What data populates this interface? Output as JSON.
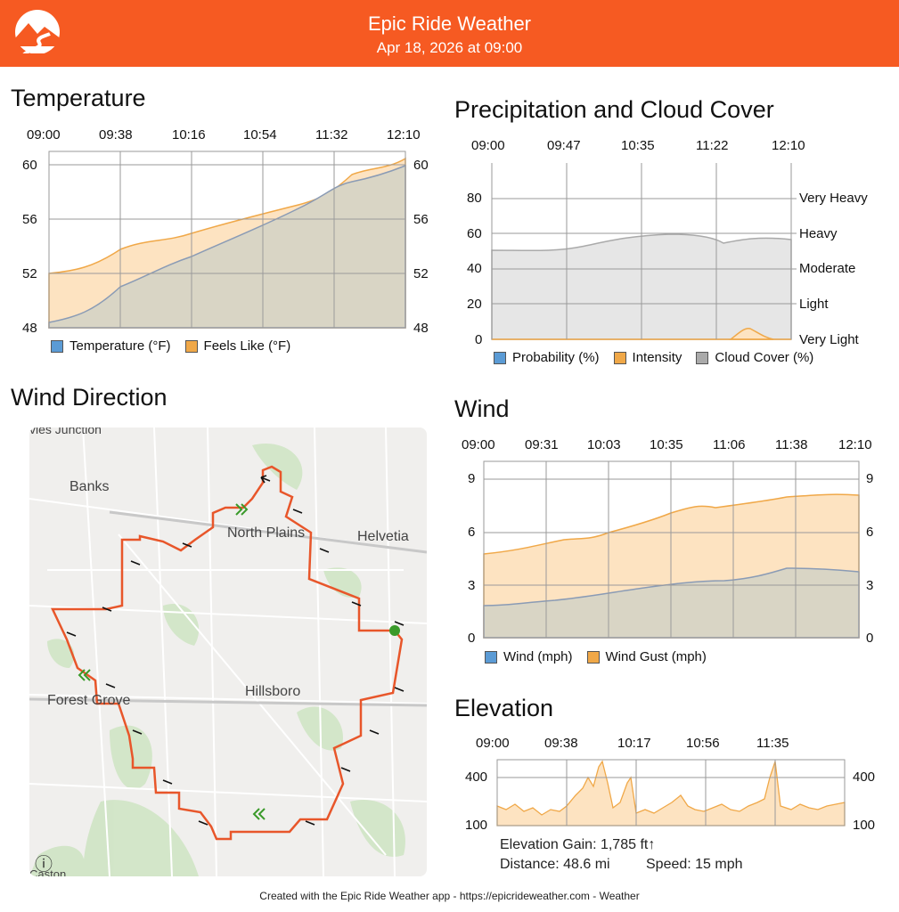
{
  "header": {
    "title": "Epic Ride Weather",
    "subtitle": "Apr 18, 2026 at 09:00",
    "bg_color": "#f65a22"
  },
  "temperature": {
    "title": "Temperature",
    "times": [
      "09:00",
      "09:38",
      "10:16",
      "10:54",
      "11:32",
      "12:10"
    ],
    "y_ticks": [
      "60",
      "56",
      "52",
      "48"
    ],
    "legend": [
      "Temperature (°F)",
      "Feels Like (°F)"
    ]
  },
  "precip": {
    "title": "Precipitation and Cloud Cover",
    "times": [
      "09:00",
      "09:47",
      "10:35",
      "11:22",
      "12:10"
    ],
    "y_ticks": [
      "80",
      "60",
      "40",
      "20",
      "0"
    ],
    "intensity_labels": [
      "Very Heavy",
      "Heavy",
      "Moderate",
      "Light",
      "Very Light"
    ],
    "legend": [
      "Probability (%)",
      "Intensity",
      "Cloud Cover (%)"
    ]
  },
  "wind_direction": {
    "title": "Wind Direction"
  },
  "map": {
    "labels": [
      "vies Junction",
      "Banks",
      "North Plains",
      "Helvetia",
      "Forest Grove",
      "Hillsboro",
      "Caston"
    ],
    "info_glyph": "ⓘ"
  },
  "wind": {
    "title": "Wind",
    "times": [
      "09:00",
      "09:31",
      "10:03",
      "10:35",
      "11:06",
      "11:38",
      "12:10"
    ],
    "y_ticks": [
      "9",
      "6",
      "3",
      "0"
    ],
    "legend": [
      "Wind (mph)",
      "Wind Gust (mph)"
    ]
  },
  "elevation": {
    "title": "Elevation",
    "times": [
      "09:00",
      "09:38",
      "10:17",
      "10:56",
      "11:35"
    ],
    "y_ticks": [
      "400",
      "100"
    ],
    "gain": "Elevation Gain: 1,785 ft↑",
    "distance": "Distance: 48.6 mi",
    "speed": "Speed: 15 mph"
  },
  "footer": {
    "text": "Created with the Epic Ride Weather app - https://epicrideweather.com -  Weather"
  },
  "chart_data": [
    {
      "type": "area",
      "title": "Temperature",
      "categories": [
        "09:00",
        "09:38",
        "10:16",
        "10:54",
        "11:32",
        "12:10"
      ],
      "ylim": [
        48,
        60
      ],
      "series": [
        {
          "name": "Temperature (°F)",
          "values": [
            48.4,
            51.0,
            53.2,
            55.5,
            57.6,
            59.8
          ],
          "color": "#8a9bb5"
        },
        {
          "name": "Feels Like (°F)",
          "values": [
            52.0,
            54.1,
            55.0,
            56.5,
            58.2,
            60.4
          ],
          "color": "#f0a848"
        }
      ]
    },
    {
      "type": "area",
      "title": "Precipitation and Cloud Cover",
      "categories": [
        "09:00",
        "09:47",
        "10:35",
        "11:22",
        "12:10"
      ],
      "ylim": [
        0,
        80
      ],
      "series": [
        {
          "name": "Probability (%)",
          "values": [
            0,
            0,
            0,
            0,
            0
          ],
          "color": "#5b9bd5"
        },
        {
          "name": "Intensity",
          "values": [
            0,
            0,
            0,
            0,
            0
          ],
          "color": "#f0a848"
        },
        {
          "name": "Cloud Cover (%)",
          "values": [
            50,
            52,
            60,
            56,
            57
          ],
          "color": "#aaaaaa"
        }
      ]
    },
    {
      "type": "area",
      "title": "Wind",
      "categories": [
        "09:00",
        "09:31",
        "10:03",
        "10:35",
        "11:06",
        "11:38",
        "12:10"
      ],
      "ylim": [
        0,
        9
      ],
      "series": [
        {
          "name": "Wind (mph)",
          "values": [
            1.8,
            2.1,
            2.5,
            3.0,
            3.2,
            3.8,
            3.8
          ],
          "color": "#8a9bb5"
        },
        {
          "name": "Wind Gust (mph)",
          "values": [
            4.7,
            5.4,
            6.1,
            7.1,
            7.4,
            8.0,
            8.1
          ],
          "color": "#f0a848"
        }
      ]
    },
    {
      "type": "area",
      "title": "Elevation",
      "categories": [
        "09:00",
        "09:38",
        "10:17",
        "10:56",
        "11:35"
      ],
      "ylim": [
        100,
        400
      ],
      "series": [
        {
          "name": "",
          "values": [
            190,
            200,
            180,
            210,
            190
          ],
          "color": "#f0a848"
        }
      ]
    }
  ],
  "colors": {
    "temp_fill": "#d9d5c5",
    "feels_fill": "#fde3c1",
    "orange_line": "#f0a848",
    "grey_line": "#8a9bb5",
    "route": "#e8562a",
    "grid": "#9a9a9a"
  }
}
